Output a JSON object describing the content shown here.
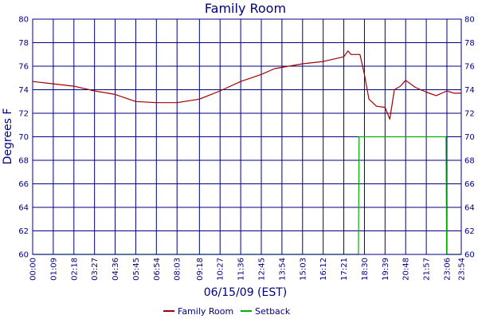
{
  "chart_data": {
    "type": "line",
    "title": "Family Room",
    "xlabel": "06/15/09 (EST)",
    "ylabel": "Degrees F",
    "x_range": [
      "00:00",
      "23:54"
    ],
    "ylim": [
      60,
      80
    ],
    "y_ticks": [
      60,
      62,
      64,
      66,
      68,
      70,
      72,
      74,
      76,
      78,
      80
    ],
    "x_ticks": [
      "00:00",
      "01:09",
      "02:18",
      "03:27",
      "04:36",
      "05:45",
      "06:54",
      "08:03",
      "09:18",
      "10:27",
      "11:36",
      "12:45",
      "13:54",
      "15:03",
      "16:12",
      "17:21",
      "18:30",
      "19:39",
      "20:48",
      "21:57",
      "23:06",
      "23:54"
    ],
    "grid": true,
    "legend_position": "bottom",
    "series": [
      {
        "name": "Family Room",
        "color": "#a00000",
        "points": [
          [
            "00:00",
            74.7
          ],
          [
            "01:09",
            74.5
          ],
          [
            "02:18",
            74.3
          ],
          [
            "03:27",
            73.9
          ],
          [
            "04:36",
            73.6
          ],
          [
            "05:45",
            73.0
          ],
          [
            "06:54",
            72.9
          ],
          [
            "08:03",
            72.9
          ],
          [
            "09:18",
            73.2
          ],
          [
            "10:27",
            73.9
          ],
          [
            "11:36",
            74.7
          ],
          [
            "12:45",
            75.3
          ],
          [
            "13:30",
            75.8
          ],
          [
            "13:54",
            75.9
          ],
          [
            "15:03",
            76.2
          ],
          [
            "16:12",
            76.4
          ],
          [
            "17:21",
            76.8
          ],
          [
            "17:35",
            77.3
          ],
          [
            "17:45",
            77.0
          ],
          [
            "18:15",
            77.0
          ],
          [
            "18:30",
            75.3
          ],
          [
            "18:45",
            73.2
          ],
          [
            "19:10",
            72.6
          ],
          [
            "19:39",
            72.5
          ],
          [
            "19:55",
            71.5
          ],
          [
            "20:10",
            74.0
          ],
          [
            "20:30",
            74.3
          ],
          [
            "20:48",
            74.8
          ],
          [
            "21:20",
            74.2
          ],
          [
            "21:57",
            73.8
          ],
          [
            "22:30",
            73.5
          ],
          [
            "23:06",
            73.9
          ],
          [
            "23:30",
            73.7
          ],
          [
            "23:54",
            73.7
          ]
        ]
      },
      {
        "name": "Setback",
        "color": "#00b000",
        "points": [
          [
            "00:00",
            60
          ],
          [
            "18:10",
            60
          ],
          [
            "18:12",
            70
          ],
          [
            "23:03",
            70
          ],
          [
            "23:05",
            60
          ],
          [
            "23:54",
            60
          ]
        ]
      }
    ]
  }
}
